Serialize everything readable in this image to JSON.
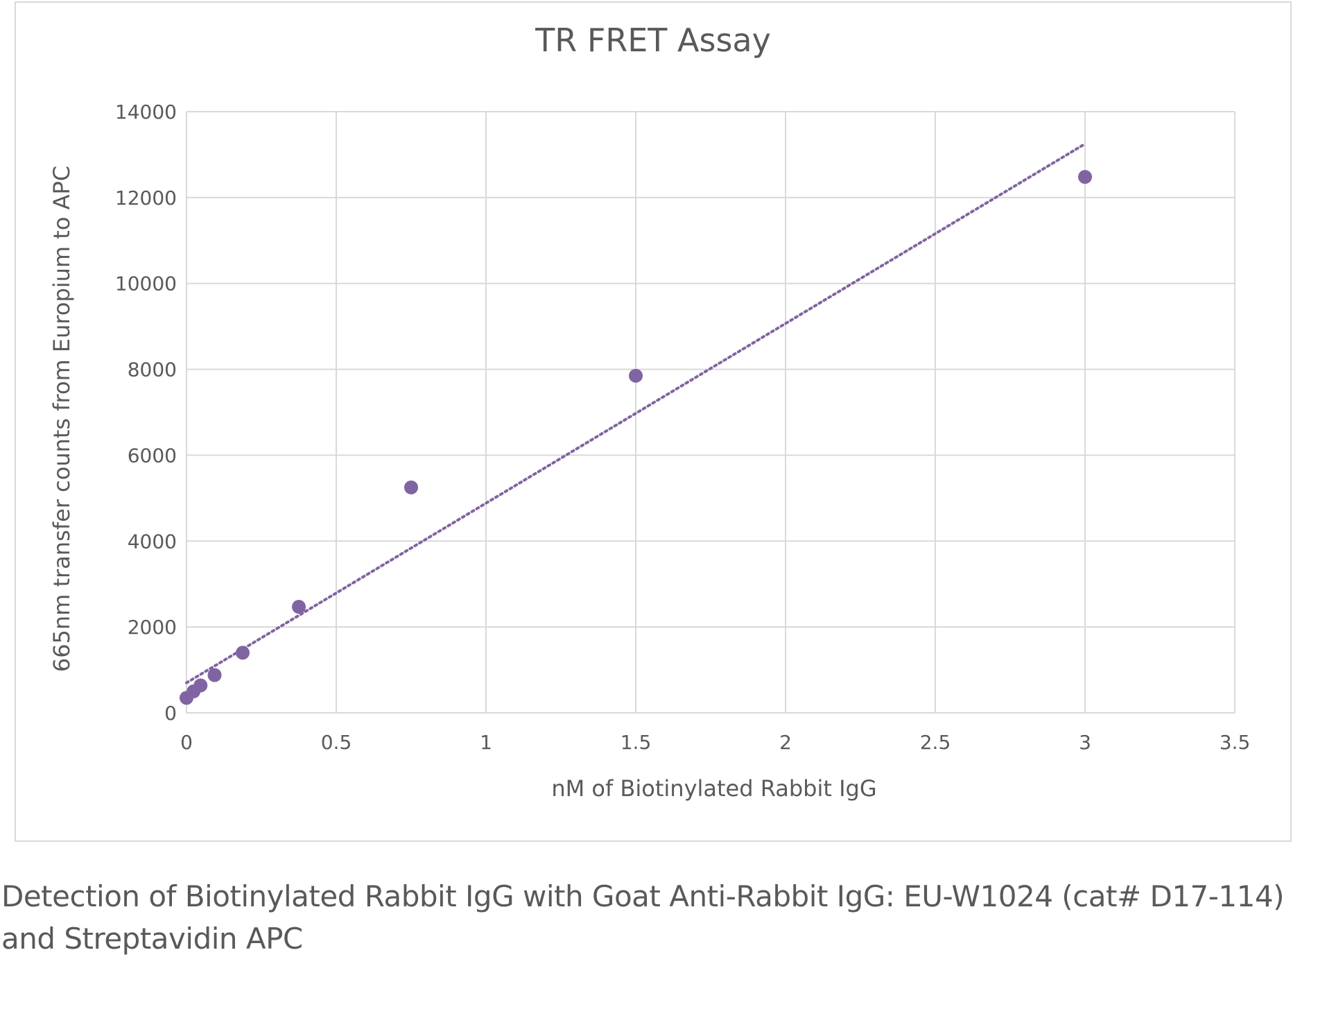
{
  "chart_data": {
    "type": "scatter",
    "title": "TR FRET Assay",
    "xlabel": "nM of Biotinylated Rabbit IgG",
    "ylabel": "665nm transfer counts from Europium to APC",
    "xlim": [
      0,
      3.5
    ],
    "ylim": [
      0,
      14000
    ],
    "x_ticks": [
      "0",
      "0.5",
      "1",
      "1.5",
      "2",
      "2.5",
      "3",
      "3.5"
    ],
    "y_ticks": [
      "0",
      "2000",
      "4000",
      "6000",
      "8000",
      "10000",
      "12000",
      "14000"
    ],
    "grid": true,
    "legend": "none",
    "series": [
      {
        "color": "#8064a2",
        "x": [
          0,
          0.0234,
          0.0469,
          0.0938,
          0.1875,
          0.375,
          0.75,
          1.5,
          3
        ],
        "y": [
          350,
          500,
          640,
          880,
          1400,
          2470,
          5250,
          7850,
          12480
        ]
      }
    ],
    "trendline": {
      "style": "dotted",
      "color": "#8064a2",
      "x": [
        0,
        3
      ],
      "y": [
        700,
        13250
      ]
    }
  },
  "caption": {
    "line1": "Detection of Biotinylated Rabbit IgG with Goat Anti-Rabbit IgG: EU-W1024 (cat# D17-114)",
    "line2": "and Streptavidin APC"
  },
  "colors": {
    "marker": "#8064a2",
    "grid": "#d9d9d9",
    "text": "#595959"
  }
}
